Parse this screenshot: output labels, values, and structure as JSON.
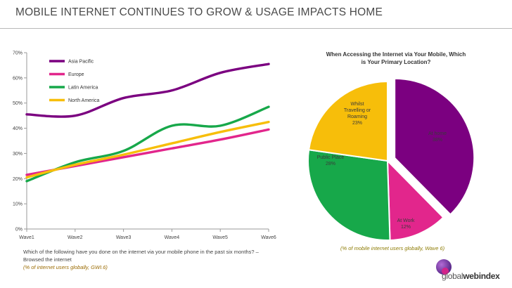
{
  "page": {
    "title": "MOBILE INTERNET CONTINUES TO GROW & USAGE IMPACTS HOME",
    "footnote_question": "Which of the following have you done on the internet via your mobile phone in the past six months? – Browsed the internet",
    "footnote_source": "(% of internet users globally, GWI.6)",
    "logo_prefix": "global",
    "logo_web": "web",
    "logo_index": "index"
  },
  "chart_data": [
    {
      "type": "line",
      "title": "",
      "xlabel": "",
      "ylabel": "",
      "categories": [
        "Wave1",
        "Wave2",
        "Wave3",
        "Wave4",
        "Wave5",
        "Wave6"
      ],
      "ylim": [
        0,
        70
      ],
      "yticks": [
        "0%",
        "10%",
        "20%",
        "30%",
        "40%",
        "50%",
        "60%",
        "70%"
      ],
      "grid": false,
      "legend_position": "top-left",
      "series": [
        {
          "name": "Asia Pacific",
          "color": "#7b0080",
          "values": [
            45.5,
            45,
            52,
            55,
            62,
            65.5
          ]
        },
        {
          "name": "Europe",
          "color": "#e2268c",
          "values": [
            21.5,
            25,
            28.5,
            32,
            35.5,
            39.5
          ]
        },
        {
          "name": "Latin America",
          "color": "#17a84a",
          "values": [
            19,
            26.5,
            31,
            41,
            41,
            48.5
          ]
        },
        {
          "name": "North America",
          "color": "#f7be0a",
          "values": [
            20.5,
            25.5,
            29.5,
            34,
            38.5,
            42.5
          ]
        }
      ]
    },
    {
      "type": "pie",
      "title": "When Accessing the Internet via Your Mobile, Which is Your Primary Location?",
      "note": "(% of mobile internet users globally, Wave 6)",
      "slices": [
        {
          "label": "At home",
          "value_label": "38%",
          "value": 38,
          "color": "#7b0080",
          "exploded": true
        },
        {
          "label": "At Work",
          "value_label": "12%",
          "value": 12,
          "color": "#e2268c",
          "exploded": false
        },
        {
          "label": "Public Place",
          "value_label": "28%",
          "value": 28,
          "color": "#17a84a",
          "exploded": false
        },
        {
          "label": "Whilst Travelling or Roaming",
          "value_label": "23%",
          "value": 23,
          "color": "#f7be0a",
          "exploded": false
        }
      ]
    }
  ]
}
